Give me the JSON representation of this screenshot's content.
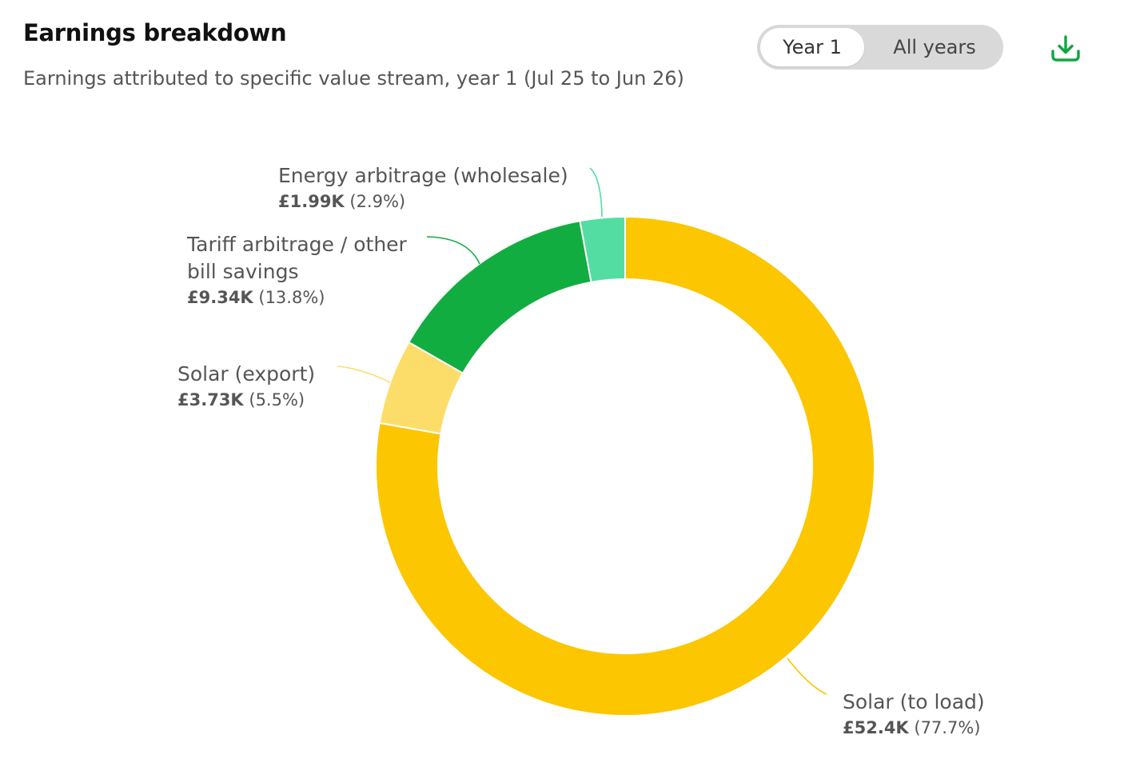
{
  "header": {
    "title": "Earnings breakdown",
    "subtitle": "Earnings attributed to specific value stream, year 1 (Jul 25 to Jun 26)",
    "toggle": {
      "options": [
        "Year 1",
        "All years"
      ],
      "selected": "Year 1"
    },
    "download_icon": "download-icon"
  },
  "colors": {
    "accent": "#12a53f",
    "solar_to_load": "#fcc600",
    "solar_export": "#fcdd6a",
    "tariff_arbitrage": "#12ad40",
    "energy_arbitrage": "#53dda3"
  },
  "chart_data": {
    "type": "pie",
    "donut": true,
    "start": "top",
    "direction": "clockwise",
    "slices": [
      {
        "name": "Solar (to load)",
        "value_label": "£52.4K",
        "percent_label": "(77.7%)",
        "value": 52.4,
        "percent": 77.7,
        "color": "#fcc600"
      },
      {
        "name": "Solar (export)",
        "value_label": "£3.73K",
        "percent_label": "(5.5%)",
        "value": 3.73,
        "percent": 5.5,
        "color": "#fcdd6a"
      },
      {
        "name": "Tariff arbitrage / other bill savings",
        "name_lines": [
          "Tariff arbitrage / other",
          "bill savings"
        ],
        "value_label": "£9.34K",
        "percent_label": "(13.8%)",
        "value": 9.34,
        "percent": 13.8,
        "color": "#12ad40"
      },
      {
        "name": "Energy arbitrage (wholesale)",
        "name_lines": [
          "Energy arbitrage (wholesale)"
        ],
        "value_label": "£1.99K",
        "percent_label": "(2.9%)",
        "value": 1.99,
        "percent": 2.9,
        "color": "#53dda3"
      }
    ]
  }
}
